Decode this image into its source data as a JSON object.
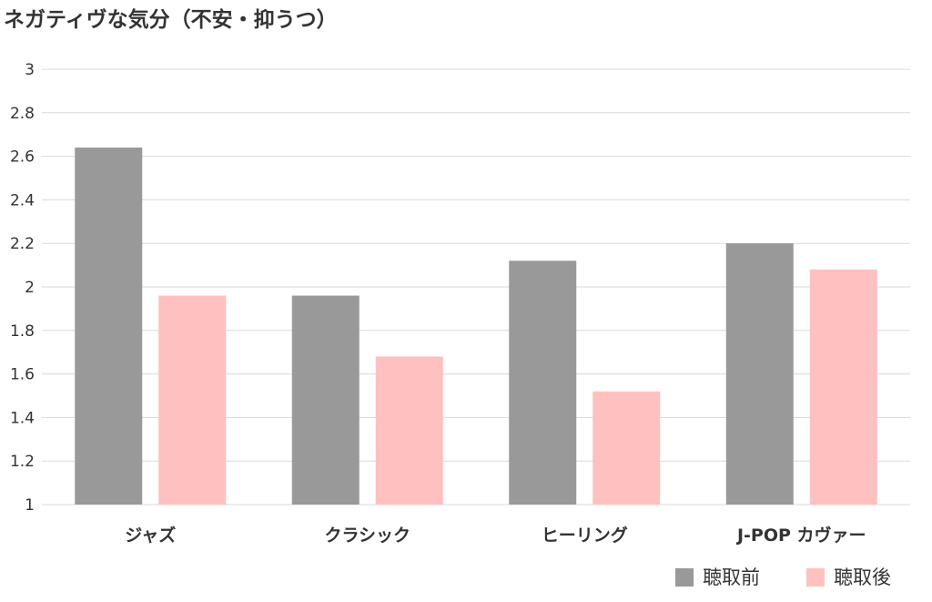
{
  "chart_data": {
    "type": "bar",
    "title": "ネガティヴな気分（不安・抑うつ）",
    "categories": [
      "ジャズ",
      "クラシック",
      "ヒーリング",
      "J-POP カヴァー"
    ],
    "series": [
      {
        "name": "聴取前",
        "color": "#999999",
        "values": [
          2.64,
          1.96,
          2.12,
          2.2
        ]
      },
      {
        "name": "聴取後",
        "color": "#ffc0c0",
        "values": [
          1.96,
          1.68,
          1.52,
          2.08
        ]
      }
    ],
    "ylim": [
      1,
      3
    ],
    "yticks": [
      "1",
      "1.2",
      "1.4",
      "1.6",
      "1.8",
      "2",
      "2.2",
      "2.4",
      "2.6",
      "2.8",
      "3"
    ],
    "grid": true,
    "legend_position": "bottom-right"
  }
}
